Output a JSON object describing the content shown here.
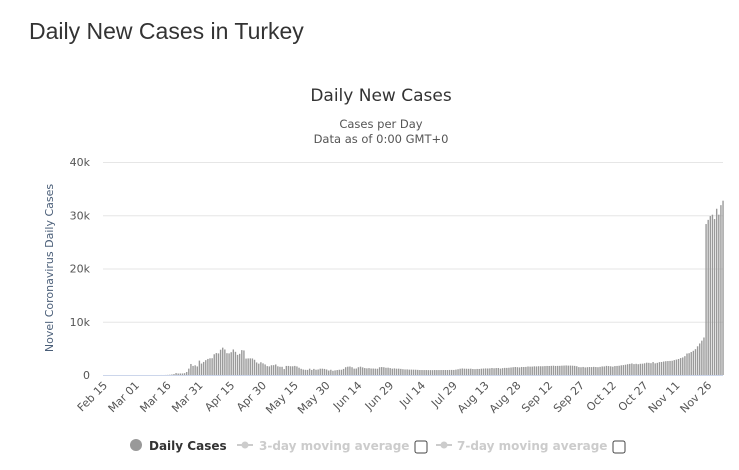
{
  "page_title": "Daily New Cases in Turkey",
  "chart_data": {
    "type": "bar",
    "title": "Daily New Cases",
    "subtitle_line1": "Cases per Day",
    "subtitle_line2": "Data as of 0:00 GMT+0",
    "ylabel": "Novel Coronavirus Daily Cases",
    "xlabel": "",
    "ylim": [
      0,
      40000
    ],
    "yticks": [
      {
        "v": 0,
        "label": "0"
      },
      {
        "v": 10000,
        "label": "10k"
      },
      {
        "v": 20000,
        "label": "20k"
      },
      {
        "v": 30000,
        "label": "30k"
      },
      {
        "v": 40000,
        "label": "40k"
      }
    ],
    "xtick_every": 15,
    "xtick_labels": [
      "Feb 15",
      "Mar 01",
      "Mar 16",
      "Mar 31",
      "Apr 15",
      "Apr 30",
      "May 15",
      "May 30",
      "Jun 14",
      "Jun 29",
      "Jul 14",
      "Jul 29",
      "Aug 13",
      "Aug 28",
      "Sep 12",
      "Sep 27",
      "Oct 12",
      "Oct 27",
      "Nov 11",
      "Nov 26"
    ],
    "grid": true,
    "bar_color": "#999999",
    "legend": {
      "position": "bottom",
      "items": [
        {
          "label": "Daily Cases",
          "active": true
        },
        {
          "label": "3-day moving average",
          "active": false
        },
        {
          "label": "7-day moving average",
          "active": false
        }
      ]
    },
    "values": [
      0,
      0,
      0,
      0,
      0,
      0,
      0,
      0,
      0,
      0,
      0,
      0,
      0,
      0,
      0,
      0,
      0,
      0,
      0,
      0,
      0,
      0,
      0,
      0,
      0,
      1,
      0,
      4,
      1,
      12,
      29,
      51,
      93,
      168,
      359,
      277,
      289,
      293,
      343,
      561,
      1196,
      2069,
      1704,
      1815,
      1610,
      2704,
      2148,
      2456,
      2786,
      3013,
      3135,
      3148,
      3892,
      4117,
      4056,
      4747,
      5138,
      4789,
      4093,
      4062,
      4281,
      4801,
      4353,
      3783,
      3977,
      4674,
      4611,
      3083,
      3116,
      3122,
      3104,
      2861,
      2357,
      2131,
      2392,
      2188,
      1983,
      1670,
      1614,
      1832,
      1848,
      1977,
      1634,
      1546,
      1542,
      1114,
      1704,
      1704,
      1639,
      1635,
      1708,
      1610,
      1368,
      1158,
      1022,
      972,
      961,
      1186,
      952,
      1141,
      987,
      1034,
      1182,
      1186,
      1141,
      1035,
      839,
      983,
      786,
      867,
      930,
      988,
      989,
      1141,
      1463,
      1562,
      1592,
      1459,
      1195,
      1214,
      1459,
      1562,
      1429,
      1304,
      1248,
      1292,
      1214,
      1212,
      1192,
      1172,
      1458,
      1492,
      1458,
      1356,
      1374,
      1293,
      1192,
      1242,
      1188,
      1192,
      1148,
      1086,
      1041,
      1053,
      1008,
      1016,
      1001,
      992,
      963,
      936,
      933,
      926,
      930,
      918,
      919,
      913,
      932,
      928,
      927,
      934,
      935,
      937,
      933,
      952,
      956,
      945,
      1010,
      1083,
      1178,
      1224,
      1190,
      1178,
      1166,
      1182,
      1120,
      1097,
      1138,
      1134,
      1182,
      1213,
      1235,
      1226,
      1243,
      1311,
      1262,
      1303,
      1312,
      1206,
      1286,
      1334,
      1332,
      1361,
      1412,
      1459,
      1502,
      1468,
      1423,
      1509,
      1500,
      1518,
      1596,
      1572,
      1583,
      1629,
      1610,
      1647,
      1643,
      1642,
      1673,
      1697,
      1693,
      1716,
      1742,
      1698,
      1712,
      1717,
      1751,
      1769,
      1792,
      1761,
      1767,
      1747,
      1714,
      1641,
      1481,
      1461,
      1512,
      1426,
      1466,
      1498,
      1488,
      1528,
      1497,
      1468,
      1524,
      1608,
      1612,
      1714,
      1675,
      1631,
      1565,
      1680,
      1701,
      1740,
      1818,
      1861,
      1931,
      2026,
      2087,
      2165,
      2044,
      2102,
      2026,
      2107,
      2127,
      2200,
      2313,
      2283,
      2218,
      2427,
      2190,
      2281,
      2415,
      2448,
      2530,
      2589,
      2619,
      2642,
      2673,
      2795,
      2896,
      3006,
      3178,
      3296,
      3537,
      4031,
      4096,
      4311,
      4545,
      4853,
      5392,
      5923,
      6449,
      7042,
      28351,
      29132,
      29845,
      30103,
      29281,
      31219,
      30110,
      31896,
      32736
    ]
  }
}
